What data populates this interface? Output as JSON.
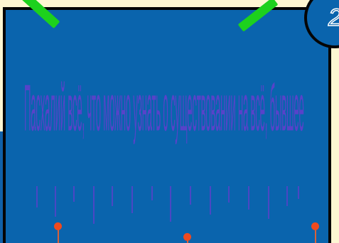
{
  "badge": {
    "number": "2"
  },
  "statement": {
    "text": "Пасхалий всё, что можно узнать о существовании на всё, бывшее"
  },
  "colors": {
    "background": "#fdf6d2",
    "board": "#0a64ad",
    "border": "#050505",
    "accent_green": "#1dd11d",
    "text_purple": "#5743c9",
    "marker_red": "#f04a1e"
  }
}
